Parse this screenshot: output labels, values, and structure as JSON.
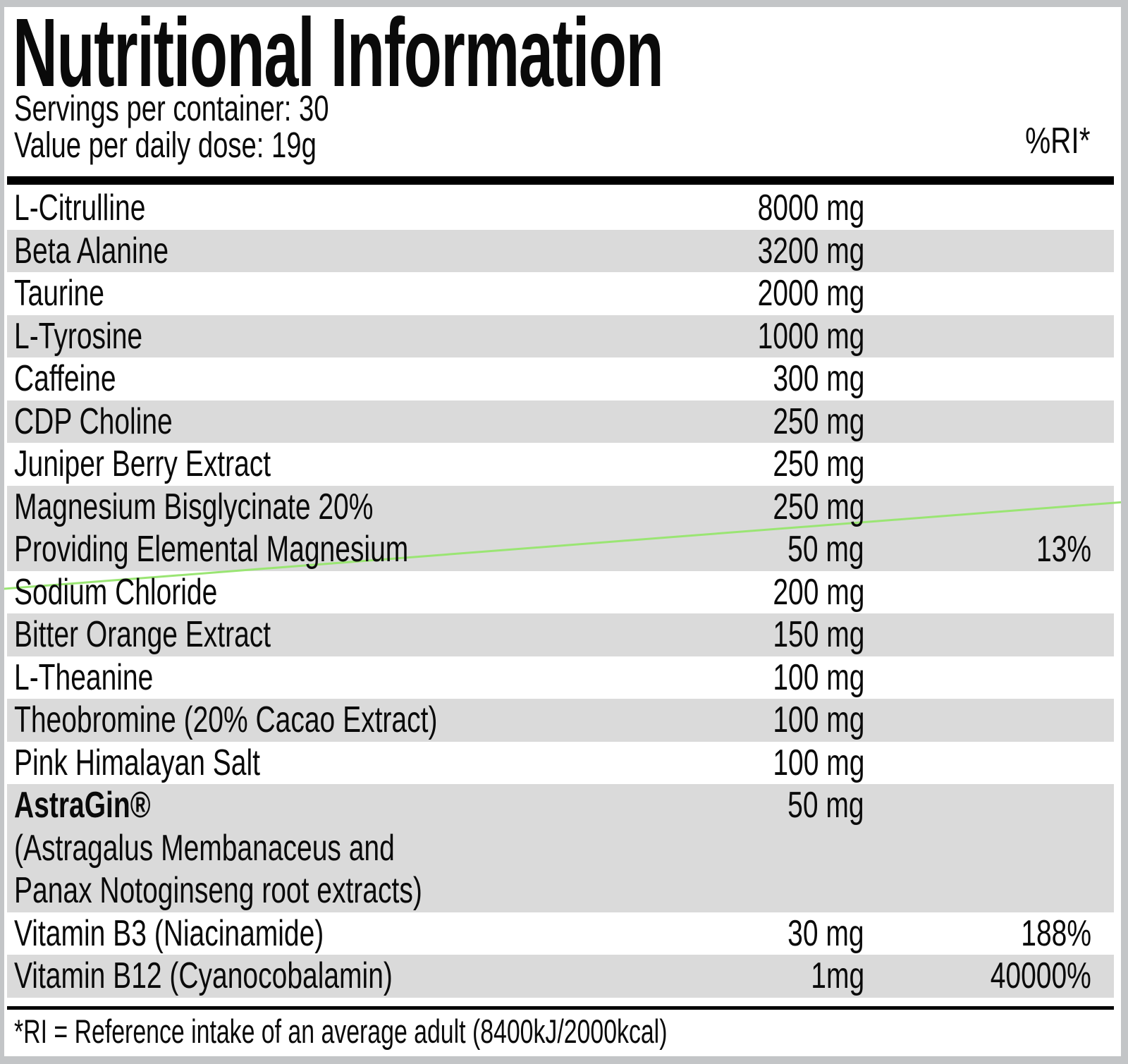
{
  "label": {
    "title": "Nutritional Information",
    "servings": "Servings per container: 30",
    "daily_dose": "Value per daily dose: 19g",
    "ri_header": "%RI*",
    "footnote": "*RI = Reference intake of an average adult (8400kJ/2000kcal)"
  },
  "table": {
    "rows": [
      {
        "name": "L-Citrulline",
        "amount": "8000 mg",
        "ri": "",
        "shaded": false,
        "bold": false
      },
      {
        "name": "Beta Alanine",
        "amount": "3200 mg",
        "ri": "",
        "shaded": true,
        "bold": false
      },
      {
        "name": "Taurine",
        "amount": "2000 mg",
        "ri": "",
        "shaded": false,
        "bold": false
      },
      {
        "name": "L-Tyrosine",
        "amount": "1000 mg",
        "ri": "",
        "shaded": true,
        "bold": false
      },
      {
        "name": "Caffeine",
        "amount": "300 mg",
        "ri": "",
        "shaded": false,
        "bold": false
      },
      {
        "name": "CDP Choline",
        "amount": "250 mg",
        "ri": "",
        "shaded": true,
        "bold": false
      },
      {
        "name": "Juniper Berry Extract",
        "amount": "250 mg",
        "ri": "",
        "shaded": false,
        "bold": false
      },
      {
        "name": "Magnesium Bisglycinate 20%",
        "amount": "250 mg",
        "ri": "",
        "shaded": true,
        "bold": false
      },
      {
        "name": "Providing Elemental Magnesium",
        "amount": "50 mg",
        "ri": "13%",
        "shaded": true,
        "bold": false
      },
      {
        "name": "Sodium Chloride",
        "amount": "200 mg",
        "ri": "",
        "shaded": false,
        "bold": false
      },
      {
        "name": "Bitter Orange Extract",
        "amount": "150 mg",
        "ri": "",
        "shaded": true,
        "bold": false
      },
      {
        "name": "L-Theanine",
        "amount": "100 mg",
        "ri": "",
        "shaded": false,
        "bold": false
      },
      {
        "name": "Theobromine (20% Cacao Extract)",
        "amount": "100 mg",
        "ri": "",
        "shaded": true,
        "bold": false
      },
      {
        "name": "Pink Himalayan Salt",
        "amount": "100 mg",
        "ri": "",
        "shaded": false,
        "bold": false
      },
      {
        "name": "AstraGin®",
        "amount": "50 mg",
        "ri": "",
        "shaded": true,
        "bold": true
      },
      {
        "name": "(Astragalus Membanaceus and",
        "amount": "",
        "ri": "",
        "shaded": true,
        "bold": false
      },
      {
        "name": "Panax Notoginseng root extracts)",
        "amount": "",
        "ri": "",
        "shaded": true,
        "bold": false
      },
      {
        "name": "Vitamin B3 (Niacinamide)",
        "amount": "30 mg",
        "ri": "188%",
        "shaded": false,
        "bold": false
      },
      {
        "name": "Vitamin B12 (Cyanocobalamin)",
        "amount": "1mg",
        "ri": "40000%",
        "shaded": true,
        "bold": false
      }
    ]
  },
  "colors": {
    "background_silver": "#c3c5c7",
    "panel_white": "#ffffff",
    "row_shade_gray": "#dadada",
    "text_black": "#0a0a0a",
    "accent_line_green": "#9ae573"
  }
}
